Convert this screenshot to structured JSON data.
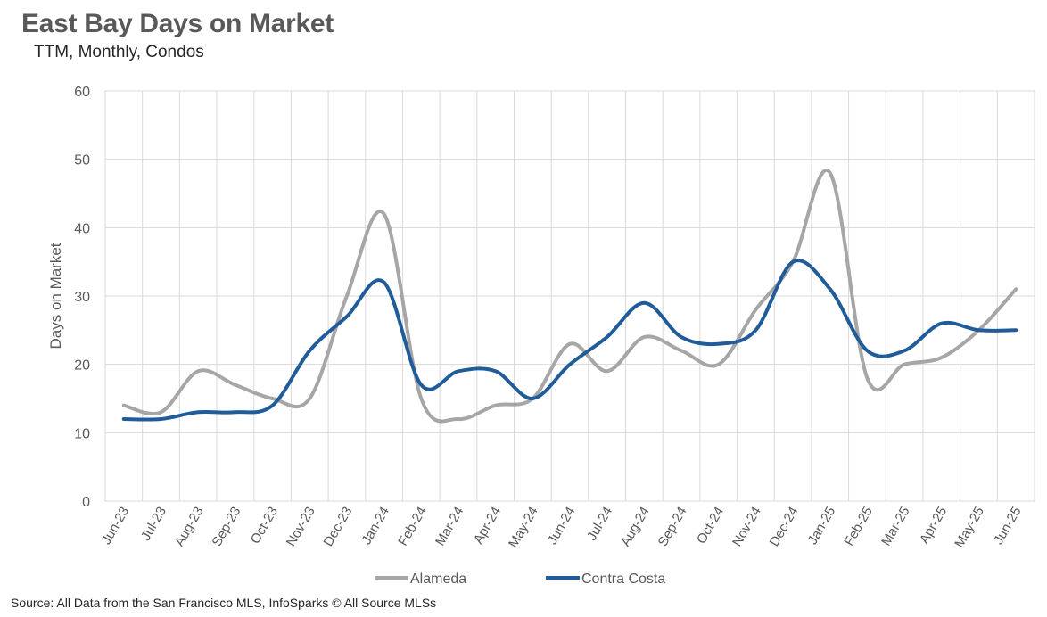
{
  "chart_data": {
    "type": "line",
    "title": "East Bay Days on Market",
    "subtitle": "TTM, Monthly, Condos",
    "ylabel": "Days on Market",
    "xlabel": "",
    "ylim": [
      0,
      60
    ],
    "yticks": [
      0,
      10,
      20,
      30,
      40,
      50,
      60
    ],
    "grid": true,
    "legend_position": "bottom",
    "categories": [
      "Jun-23",
      "Jul-23",
      "Aug-23",
      "Sep-23",
      "Oct-23",
      "Nov-23",
      "Dec-23",
      "Jan-24",
      "Feb-24",
      "Mar-24",
      "Apr-24",
      "May-24",
      "Jun-24",
      "Jul-24",
      "Aug-24",
      "Sep-24",
      "Oct-24",
      "Nov-24",
      "Dec-24",
      "Jan-25",
      "Feb-25",
      "Mar-25",
      "Apr-25",
      "May-25",
      "Jun-25"
    ],
    "series": [
      {
        "name": "Alameda",
        "color": "#A6A6A6",
        "values": [
          14,
          13,
          19,
          17,
          15,
          15,
          30,
          42,
          15,
          12,
          14,
          15,
          23,
          19,
          24,
          22,
          20,
          28,
          35,
          48,
          18,
          20,
          21,
          25,
          31
        ]
      },
      {
        "name": "Contra Costa",
        "color": "#1F5C99",
        "values": [
          12,
          12,
          13,
          13,
          14,
          22,
          27,
          32,
          17,
          19,
          19,
          15,
          20,
          24,
          29,
          24,
          23,
          25,
          35,
          31,
          22,
          22,
          26,
          25,
          25
        ]
      }
    ]
  },
  "footer": {
    "source": "Source: All Data from the San Francisco MLS, InfoSparks © All Source MLSs"
  }
}
